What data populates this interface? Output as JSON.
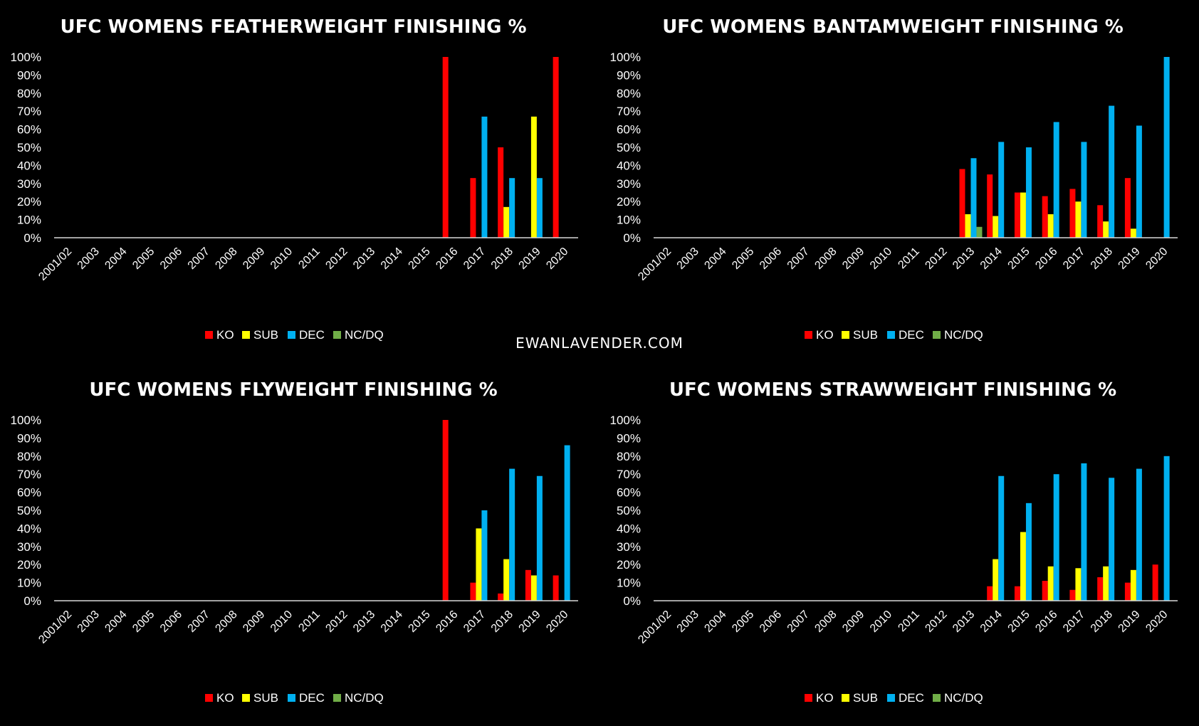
{
  "watermark": "EWANLAVENDER.COM",
  "legend": {
    "ko": "KO",
    "sub": "SUB",
    "dec": "DEC",
    "ncdq": "NC/DQ"
  },
  "colors": {
    "KO": "#ff0000",
    "SUB": "#ffff00",
    "DEC": "#00b0f0",
    "NC/DQ": "#70ad47"
  },
  "chart_data": [
    {
      "type": "bar",
      "title": "UFC WOMENS FEATHERWEIGHT FINISHING %",
      "categories": [
        "2001/02",
        "2003",
        "2004",
        "2005",
        "2006",
        "2007",
        "2008",
        "2009",
        "2010",
        "2011",
        "2012",
        "2013",
        "2014",
        "2015",
        "2016",
        "2017",
        "2018",
        "2019",
        "2020"
      ],
      "yticks": [
        "0%",
        "10%",
        "20%",
        "30%",
        "40%",
        "50%",
        "60%",
        "70%",
        "80%",
        "90%",
        "100%"
      ],
      "ylim": [
        0,
        100
      ],
      "series": [
        {
          "name": "KO",
          "values": [
            0,
            0,
            0,
            0,
            0,
            0,
            0,
            0,
            0,
            0,
            0,
            0,
            0,
            0,
            100,
            33,
            50,
            0,
            100
          ]
        },
        {
          "name": "SUB",
          "values": [
            0,
            0,
            0,
            0,
            0,
            0,
            0,
            0,
            0,
            0,
            0,
            0,
            0,
            0,
            0,
            0,
            17,
            67,
            0
          ]
        },
        {
          "name": "DEC",
          "values": [
            0,
            0,
            0,
            0,
            0,
            0,
            0,
            0,
            0,
            0,
            0,
            0,
            0,
            0,
            0,
            67,
            33,
            33,
            0
          ]
        },
        {
          "name": "NC/DQ",
          "values": [
            0,
            0,
            0,
            0,
            0,
            0,
            0,
            0,
            0,
            0,
            0,
            0,
            0,
            0,
            0,
            0,
            0,
            0,
            0
          ]
        }
      ]
    },
    {
      "type": "bar",
      "title": "UFC WOMENS BANTAMWEIGHT FINISHING %",
      "categories": [
        "2001/02",
        "2003",
        "2004",
        "2005",
        "2006",
        "2007",
        "2008",
        "2009",
        "2010",
        "2011",
        "2012",
        "2013",
        "2014",
        "2015",
        "2016",
        "2017",
        "2018",
        "2019",
        "2020"
      ],
      "yticks": [
        "0%",
        "10%",
        "20%",
        "30%",
        "40%",
        "50%",
        "60%",
        "70%",
        "80%",
        "90%",
        "100%"
      ],
      "ylim": [
        0,
        100
      ],
      "series": [
        {
          "name": "KO",
          "values": [
            0,
            0,
            0,
            0,
            0,
            0,
            0,
            0,
            0,
            0,
            0,
            38,
            35,
            25,
            23,
            27,
            18,
            33,
            0
          ]
        },
        {
          "name": "SUB",
          "values": [
            0,
            0,
            0,
            0,
            0,
            0,
            0,
            0,
            0,
            0,
            0,
            13,
            12,
            25,
            13,
            20,
            9,
            5,
            0
          ]
        },
        {
          "name": "DEC",
          "values": [
            0,
            0,
            0,
            0,
            0,
            0,
            0,
            0,
            0,
            0,
            0,
            44,
            53,
            50,
            64,
            53,
            73,
            62,
            100
          ]
        },
        {
          "name": "NC/DQ",
          "values": [
            0,
            0,
            0,
            0,
            0,
            0,
            0,
            0,
            0,
            0,
            0,
            6,
            0,
            0,
            0,
            0,
            0,
            0,
            0
          ]
        }
      ]
    },
    {
      "type": "bar",
      "title": "UFC WOMENS FLYWEIGHT FINISHING %",
      "categories": [
        "2001/02",
        "2003",
        "2004",
        "2005",
        "2006",
        "2007",
        "2008",
        "2009",
        "2010",
        "2011",
        "2012",
        "2013",
        "2014",
        "2015",
        "2016",
        "2017",
        "2018",
        "2019",
        "2020"
      ],
      "yticks": [
        "0%",
        "10%",
        "20%",
        "30%",
        "40%",
        "50%",
        "60%",
        "70%",
        "80%",
        "90%",
        "100%"
      ],
      "ylim": [
        0,
        100
      ],
      "series": [
        {
          "name": "KO",
          "values": [
            0,
            0,
            0,
            0,
            0,
            0,
            0,
            0,
            0,
            0,
            0,
            0,
            0,
            0,
            100,
            10,
            4,
            17,
            14
          ]
        },
        {
          "name": "SUB",
          "values": [
            0,
            0,
            0,
            0,
            0,
            0,
            0,
            0,
            0,
            0,
            0,
            0,
            0,
            0,
            0,
            40,
            23,
            14,
            0
          ]
        },
        {
          "name": "DEC",
          "values": [
            0,
            0,
            0,
            0,
            0,
            0,
            0,
            0,
            0,
            0,
            0,
            0,
            0,
            0,
            0,
            50,
            73,
            69,
            86
          ]
        },
        {
          "name": "NC/DQ",
          "values": [
            0,
            0,
            0,
            0,
            0,
            0,
            0,
            0,
            0,
            0,
            0,
            0,
            0,
            0,
            0,
            0,
            0,
            0,
            0
          ]
        }
      ]
    },
    {
      "type": "bar",
      "title": "UFC WOMENS STRAWWEIGHT FINISHING %",
      "categories": [
        "2001/02",
        "2003",
        "2004",
        "2005",
        "2006",
        "2007",
        "2008",
        "2009",
        "2010",
        "2011",
        "2012",
        "2013",
        "2014",
        "2015",
        "2016",
        "2017",
        "2018",
        "2019",
        "2020"
      ],
      "yticks": [
        "0%",
        "10%",
        "20%",
        "30%",
        "40%",
        "50%",
        "60%",
        "70%",
        "80%",
        "90%",
        "100%"
      ],
      "ylim": [
        0,
        100
      ],
      "series": [
        {
          "name": "KO",
          "values": [
            0,
            0,
            0,
            0,
            0,
            0,
            0,
            0,
            0,
            0,
            0,
            0,
            8,
            8,
            11,
            6,
            13,
            10,
            20
          ]
        },
        {
          "name": "SUB",
          "values": [
            0,
            0,
            0,
            0,
            0,
            0,
            0,
            0,
            0,
            0,
            0,
            0,
            23,
            38,
            19,
            18,
            19,
            17,
            0
          ]
        },
        {
          "name": "DEC",
          "values": [
            0,
            0,
            0,
            0,
            0,
            0,
            0,
            0,
            0,
            0,
            0,
            0,
            69,
            54,
            70,
            76,
            68,
            73,
            80
          ]
        },
        {
          "name": "NC/DQ",
          "values": [
            0,
            0,
            0,
            0,
            0,
            0,
            0,
            0,
            0,
            0,
            0,
            0,
            0,
            0,
            0,
            0,
            0,
            0,
            0
          ]
        }
      ]
    }
  ]
}
